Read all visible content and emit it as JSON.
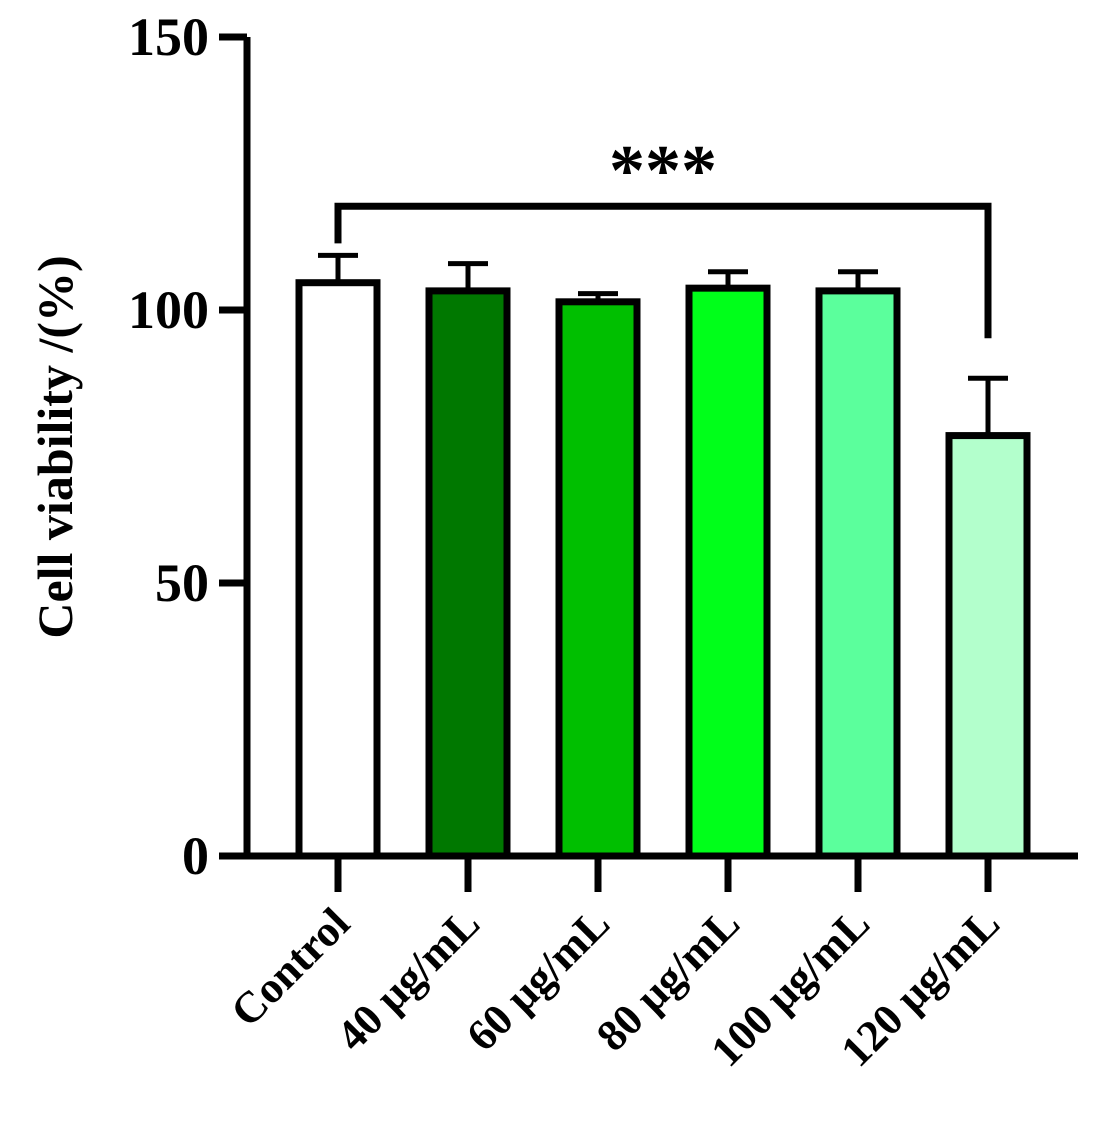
{
  "chart_data": {
    "type": "bar",
    "title": "",
    "xlabel": "",
    "ylabel": "Cell viability /(%)",
    "ylim": [
      0,
      150
    ],
    "yticks": [
      0,
      50,
      100,
      150
    ],
    "ytick_labels": [
      "0",
      "50",
      "100",
      "150"
    ],
    "categories": [
      "Control",
      "40 μg/mL",
      "60 μg/mL",
      "80 μg/mL",
      "100 μg/mL",
      "120 μg/mL"
    ],
    "values": [
      105,
      103.5,
      101.5,
      104,
      103.5,
      77
    ],
    "errors": [
      5,
      5,
      1.5,
      3,
      3.5,
      10.5
    ],
    "colors": [
      "#ffffff",
      "#007800",
      "#00bf00",
      "#00ff1a",
      "#5bff9c",
      "#b3ffcc"
    ],
    "significance": {
      "label": "***",
      "from": "Control",
      "to": "120 μg/mL",
      "bracket_value": 119
    }
  }
}
